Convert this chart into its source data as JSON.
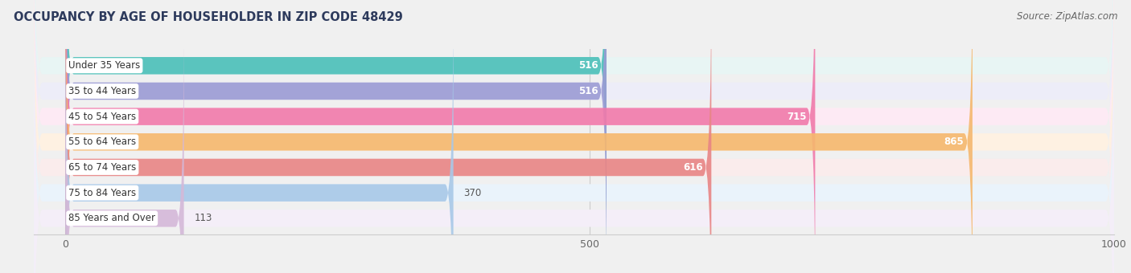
{
  "title": "OCCUPANCY BY AGE OF HOUSEHOLDER IN ZIP CODE 48429",
  "source": "Source: ZipAtlas.com",
  "categories": [
    "Under 35 Years",
    "35 to 44 Years",
    "45 to 54 Years",
    "55 to 64 Years",
    "65 to 74 Years",
    "75 to 84 Years",
    "85 Years and Over"
  ],
  "values": [
    516,
    516,
    715,
    865,
    616,
    370,
    113
  ],
  "bar_colors": [
    "#4bbfb8",
    "#9b9bd4",
    "#f07aaa",
    "#f5b86e",
    "#e88585",
    "#a8c8e8",
    "#d4b8d8"
  ],
  "bar_bg_colors": [
    "#e8f5f4",
    "#ededf8",
    "#fdeaf4",
    "#fef1e2",
    "#faecec",
    "#eaf3fb",
    "#f4eef8"
  ],
  "xlim_data": [
    0,
    1000
  ],
  "xticks": [
    0,
    500,
    1000
  ],
  "title_fontsize": 10.5,
  "label_fontsize": 8.5,
  "value_fontsize": 8.5,
  "background_color": "#f0f0f0",
  "white": "#ffffff"
}
